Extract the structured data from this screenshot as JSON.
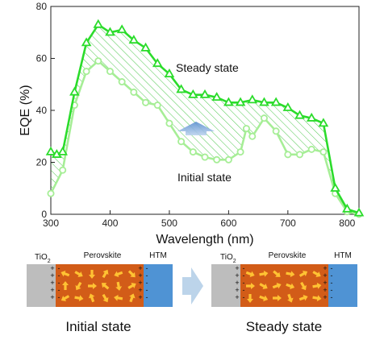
{
  "chart_data": {
    "type": "line",
    "xlabel": "Wavelength (nm)",
    "ylabel": "EQE (%)",
    "xlim": [
      300,
      820
    ],
    "ylim": [
      0,
      80
    ],
    "xticks": [
      300,
      400,
      500,
      600,
      700,
      800
    ],
    "yticks": [
      0,
      20,
      40,
      60,
      80
    ],
    "grid": false,
    "legend": "none",
    "annotations": [
      "Steady state",
      "Initial state"
    ],
    "series": [
      {
        "name": "Steady state",
        "color": "#2bdc2b",
        "marker": "triangle",
        "x": [
          300,
          310,
          320,
          340,
          360,
          380,
          400,
          420,
          440,
          460,
          480,
          500,
          520,
          540,
          560,
          580,
          600,
          620,
          640,
          660,
          680,
          700,
          720,
          740,
          760,
          780,
          800,
          820
        ],
        "y": [
          24,
          23,
          24,
          47,
          66,
          73,
          70,
          71,
          67,
          64,
          58,
          54,
          48,
          46,
          46,
          45,
          43,
          43,
          44,
          43,
          43,
          41,
          38,
          37,
          35,
          10,
          2,
          0.5
        ]
      },
      {
        "name": "Initial state",
        "color": "#a6ee96",
        "marker": "circle",
        "x": [
          300,
          320,
          340,
          360,
          380,
          400,
          420,
          440,
          460,
          480,
          500,
          520,
          540,
          560,
          580,
          600,
          620,
          630,
          640,
          660,
          680,
          700,
          720,
          740,
          760,
          780,
          800,
          820
        ],
        "y": [
          8,
          17,
          42,
          55,
          59,
          55,
          51,
          47,
          43,
          42,
          35,
          28,
          24,
          22,
          21,
          21,
          24,
          33,
          30,
          37,
          32,
          23,
          23,
          25,
          24,
          8,
          1,
          0
        ]
      }
    ]
  },
  "schematic": {
    "panels": [
      {
        "left_label": "TiO",
        "left_sub": "2",
        "middle_label": "Perovskite",
        "right_label": "HTM",
        "caption": "Initial state"
      },
      {
        "left_label": "TiO",
        "left_sub": "2",
        "middle_label": "Perovskite",
        "right_label": "HTM",
        "caption": "Steady state"
      }
    ],
    "colors": {
      "tio2": "#bdbdbd",
      "perovskite": "#d25c18",
      "htm": "#4f93d4",
      "ion": "#ffc233",
      "transition_arrow": "#bcd4ea"
    }
  }
}
